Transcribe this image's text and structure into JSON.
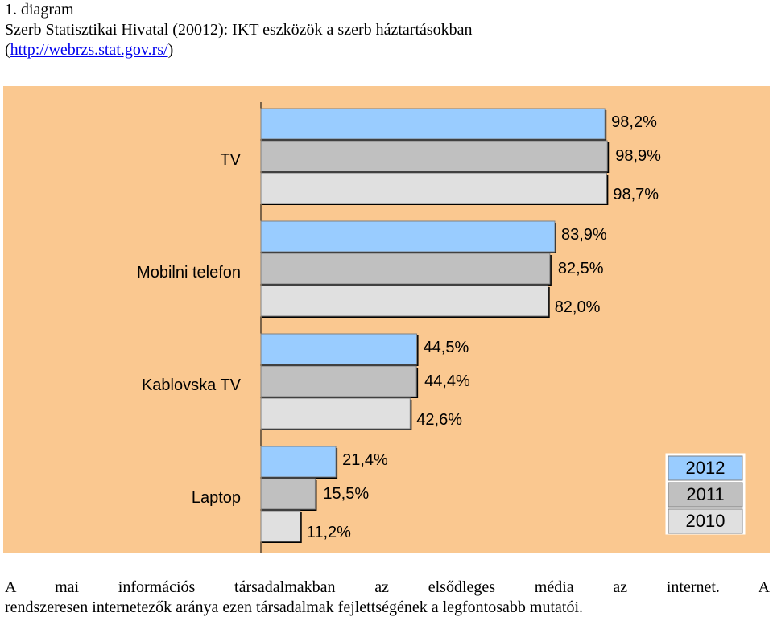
{
  "header": {
    "figure_label": "1. diagram",
    "source_prefix": "Szerb Statisztikai Hivatal (20012): IKT eszközök a szerb háztartásokban",
    "link_open": "(",
    "link_text": "http://webrzs.stat.gov.rs/",
    "link_close": ")"
  },
  "chart_data": {
    "type": "bar",
    "orientation": "horizontal",
    "categories": [
      "TV",
      "Mobilni telefon",
      "Kablovska TV",
      "Laptop"
    ],
    "series": [
      {
        "name": "2012",
        "values": [
          98.2,
          83.9,
          44.5,
          21.4
        ],
        "labels": [
          "98,2%",
          "83,9%",
          "44,5%",
          "21,4%"
        ],
        "color": "#99ccff"
      },
      {
        "name": "2011",
        "values": [
          98.9,
          82.5,
          44.4,
          15.5
        ],
        "labels": [
          "98,9%",
          "82,5%",
          "44,4%",
          "15,5%"
        ],
        "color": "#c0c0c0"
      },
      {
        "name": "2010",
        "values": [
          98.7,
          82.0,
          42.6,
          11.2
        ],
        "labels": [
          "98,7%",
          "82,0%",
          "42,6%",
          "11,2%"
        ],
        "color": "#e0e0e0"
      }
    ],
    "xlim": [
      0,
      100
    ],
    "grid": false,
    "legend_position": "bottom-right",
    "background": "#fac890"
  },
  "body": {
    "line1": "A mai információs társadalmakban az elsődleges média az internet. A",
    "line2": "rendszeresen internetezők aránya ezen társadalmak fejlettségének a legfontosabb mutatói."
  }
}
